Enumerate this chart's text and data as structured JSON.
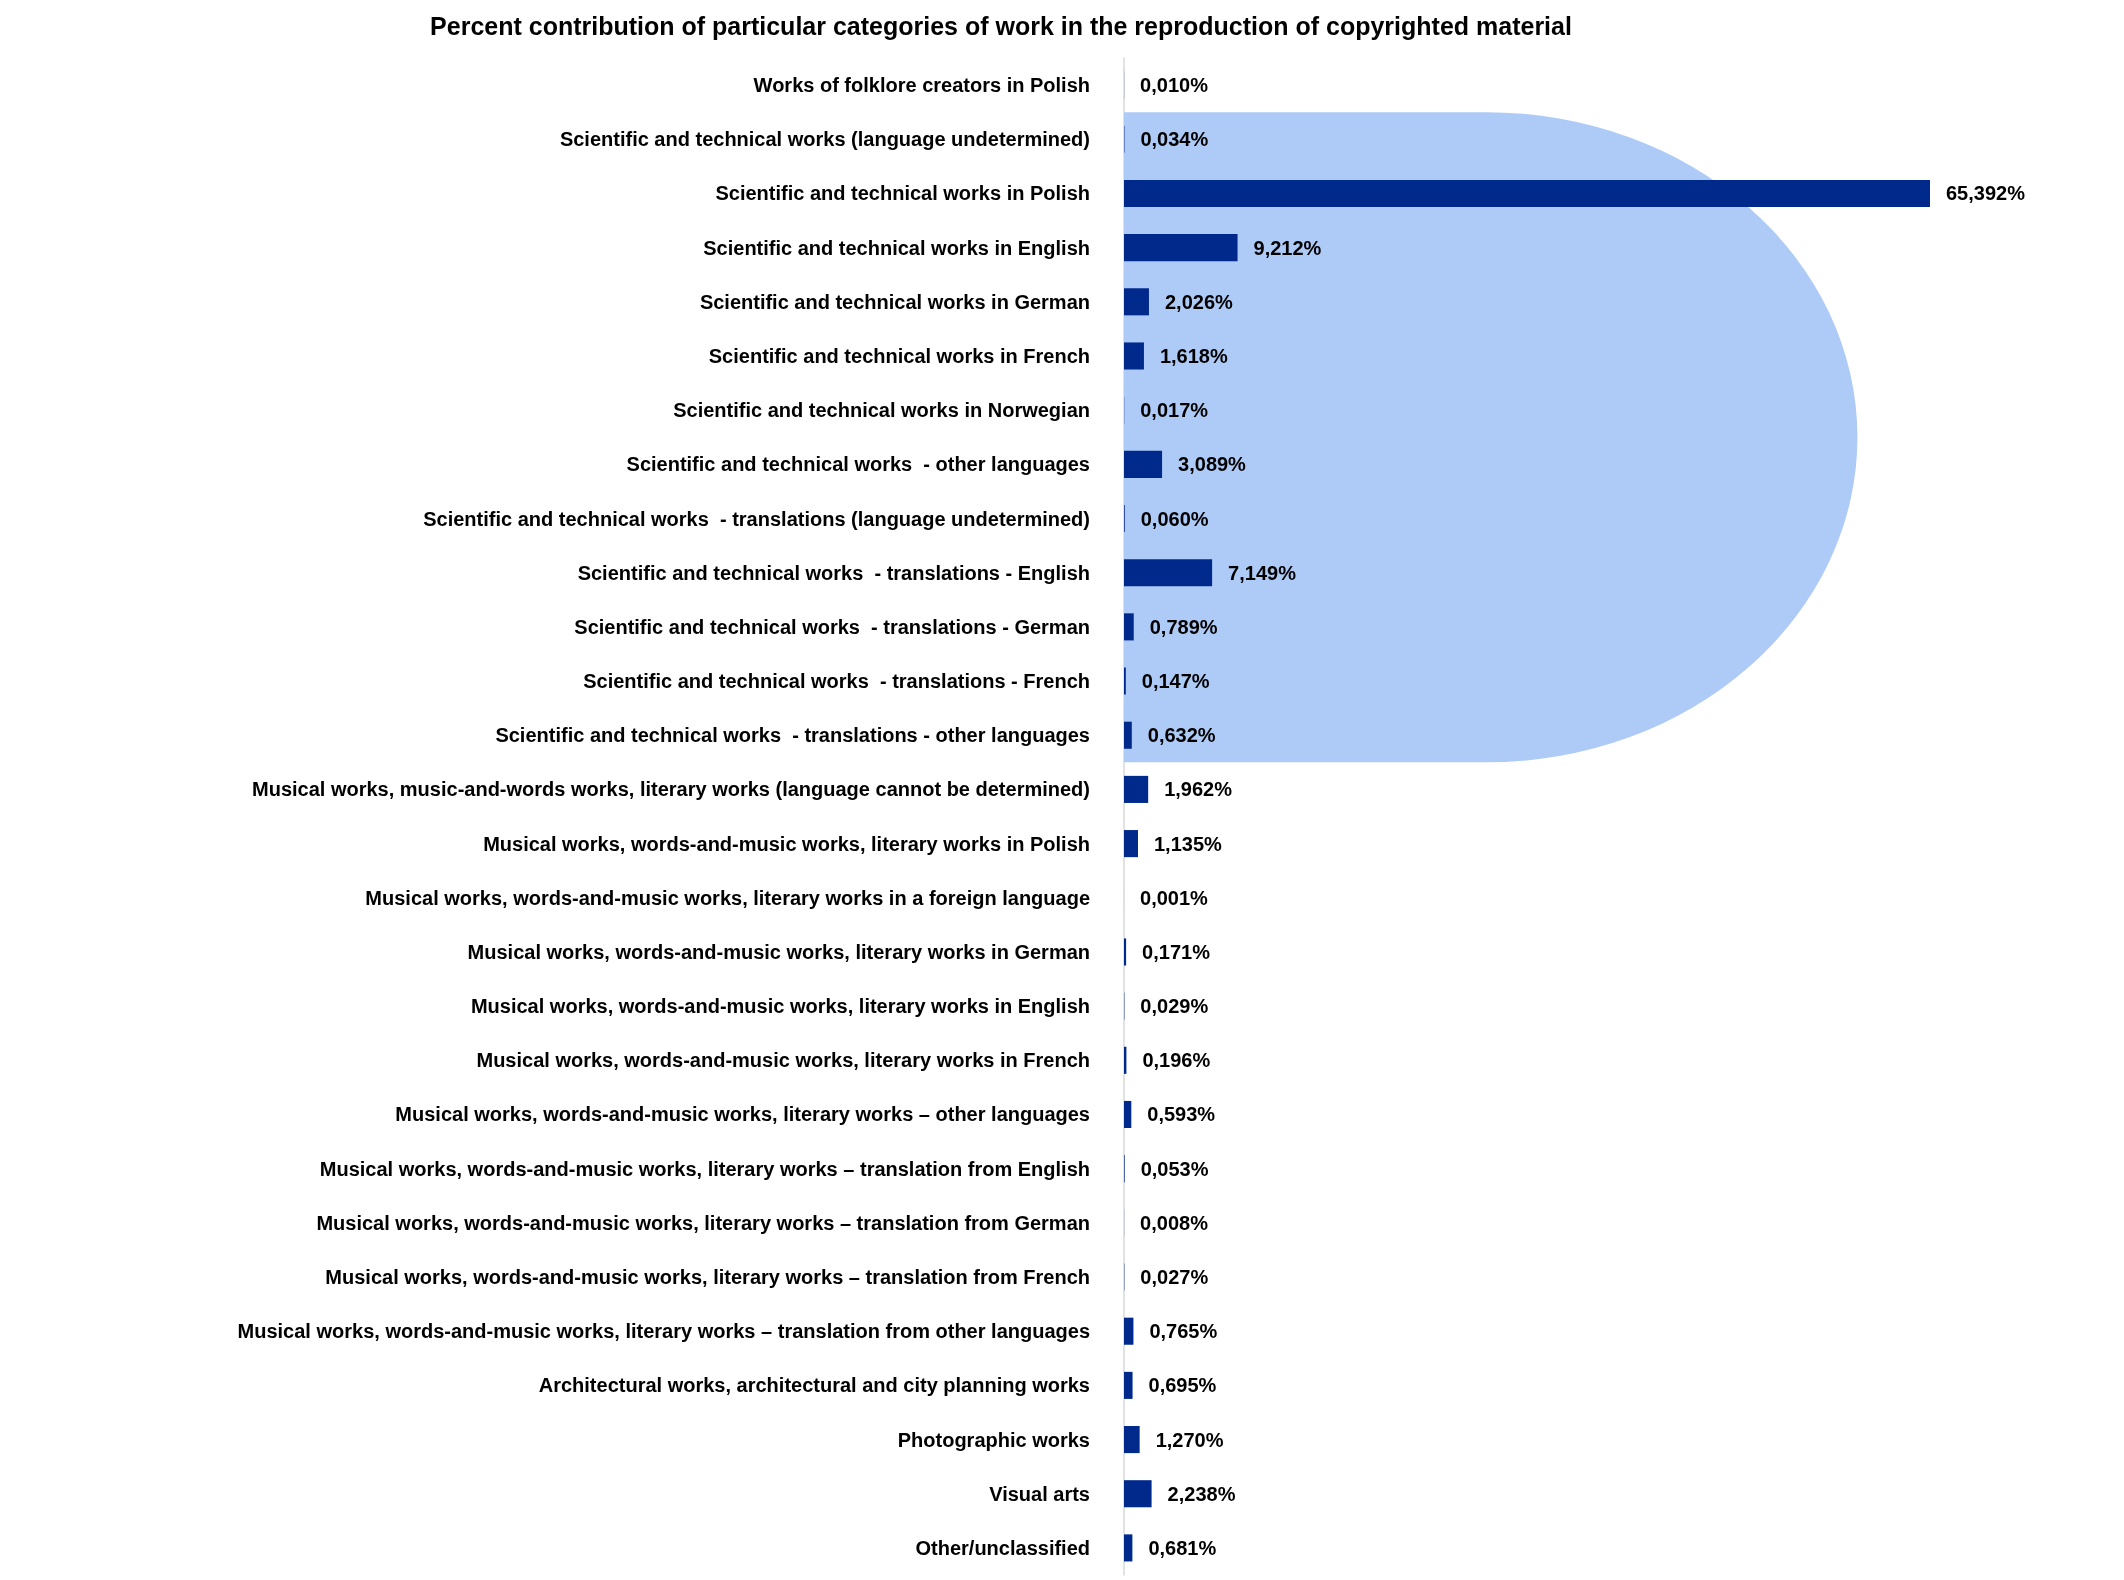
{
  "chart_data": {
    "type": "bar",
    "orientation": "horizontal",
    "title": "Percent contribution of particular categories of work in the reproduction of copyrighted material",
    "categories": [
      "Works of folklore creators in Polish",
      "Scientific and technical works (language undetermined)",
      "Scientific and technical works in Polish",
      "Scientific and technical works in English",
      "Scientific and technical works in German",
      "Scientific and technical works in French",
      "Scientific and technical works in Norwegian",
      "Scientific and technical works  - other languages",
      "Scientific and technical works  - translations (language undetermined)",
      "Scientific and technical works  - translations - English",
      "Scientific and technical works  - translations - German",
      "Scientific and technical works  - translations - French",
      "Scientific and technical works  - translations - other languages",
      "Musical works, music-and-words works, literary works (language cannot be determined)",
      "Musical works, words-and-music works, literary works in Polish",
      "Musical works, words-and-music works, literary works in a foreign language",
      "Musical works, words-and-music works, literary works in German",
      "Musical works, words-and-music works, literary works in English",
      "Musical works, words-and-music works, literary works in French",
      "Musical works, words-and-music works, literary works – other languages",
      "Musical works, words-and-music works, literary works – translation from English",
      "Musical works, words-and-music works, literary works – translation from German",
      "Musical works, words-and-music works, literary works – translation from French",
      "Musical works, words-and-music works, literary works – translation from other languages",
      "Architectural works, architectural and city planning works",
      "Photographic works",
      "Visual arts",
      "Other/unclassified"
    ],
    "values": [
      0.01,
      0.034,
      65.392,
      9.212,
      2.026,
      1.618,
      0.017,
      3.089,
      0.06,
      7.149,
      0.789,
      0.147,
      0.632,
      1.962,
      1.135,
      0.001,
      0.171,
      0.029,
      0.196,
      0.593,
      0.053,
      0.008,
      0.027,
      0.765,
      0.695,
      1.27,
      2.238,
      0.681
    ],
    "value_labels": [
      "0,010%",
      "0,034%",
      "65,392%",
      "9,212%",
      "2,026%",
      "1,618%",
      "0,017%",
      "3,089%",
      "0,060%",
      "7,149%",
      "0,789%",
      "0,147%",
      "0,632%",
      "1,962%",
      "1,135%",
      "0,001%",
      "0,171%",
      "0,029%",
      "0,196%",
      "0,593%",
      "0,053%",
      "0,008%",
      "0,027%",
      "0,765%",
      "0,695%",
      "1,270%",
      "2,238%",
      "0,681%"
    ],
    "color": "#00298c",
    "bands": [
      {
        "axis": "y",
        "from": "Scientific and technical works (language undetermined)",
        "to": "Scientific and technical works  - translations - other languages",
        "color": "#aecbf7"
      }
    ]
  }
}
